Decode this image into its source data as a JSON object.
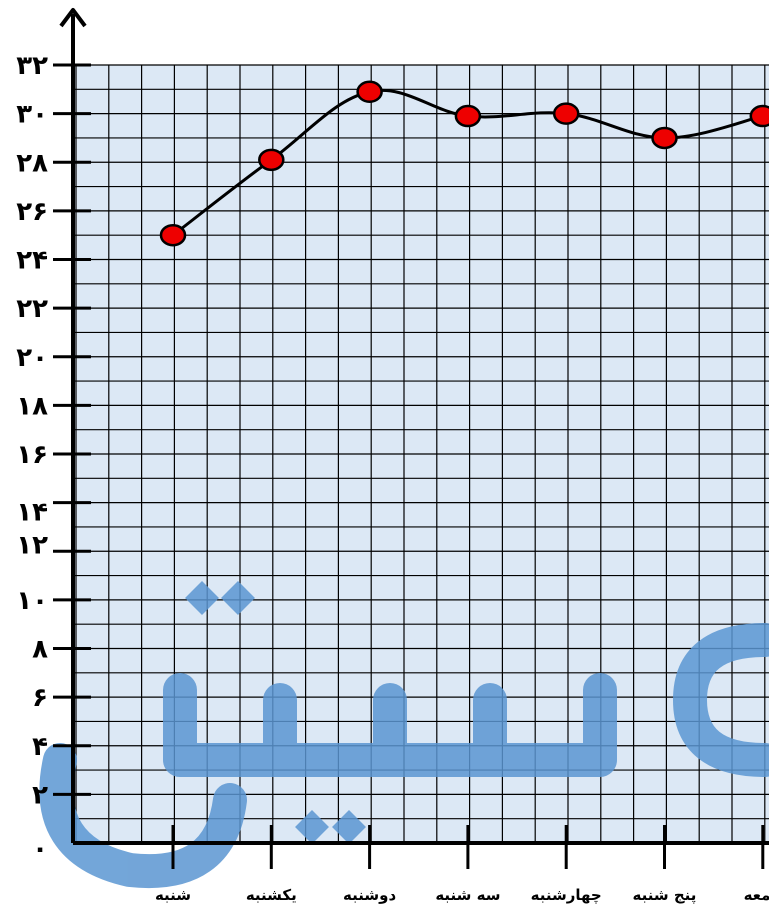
{
  "chart_data": {
    "type": "line",
    "title": "",
    "xlabel": "",
    "ylabel": "",
    "categories": [
      "شنبه",
      "یکشنبه",
      "دوشنبه",
      "سه شنبه",
      "چهارشنبه",
      "پنج شنبه",
      "جمعه"
    ],
    "series": [
      {
        "values": [
          25,
          28.1,
          30.9,
          29.9,
          30,
          29,
          29.9
        ]
      }
    ],
    "ylim": [
      0,
      32
    ],
    "yticks": [
      "۰",
      "۲",
      "۴",
      "۶",
      "۸",
      "۱۰",
      "۱۲",
      "۱۴",
      "۱۶",
      "۱۸",
      "۲۰",
      "۲۲",
      "۲۴",
      "۲۶",
      "۲۸",
      "۳۰",
      "۳۲"
    ],
    "grid": true,
    "colors": {
      "plot_background": "#dce8f5",
      "grid": "#000000",
      "line": "#000000",
      "marker_fill": "#ee0000",
      "watermark": "#5b96d2"
    }
  }
}
